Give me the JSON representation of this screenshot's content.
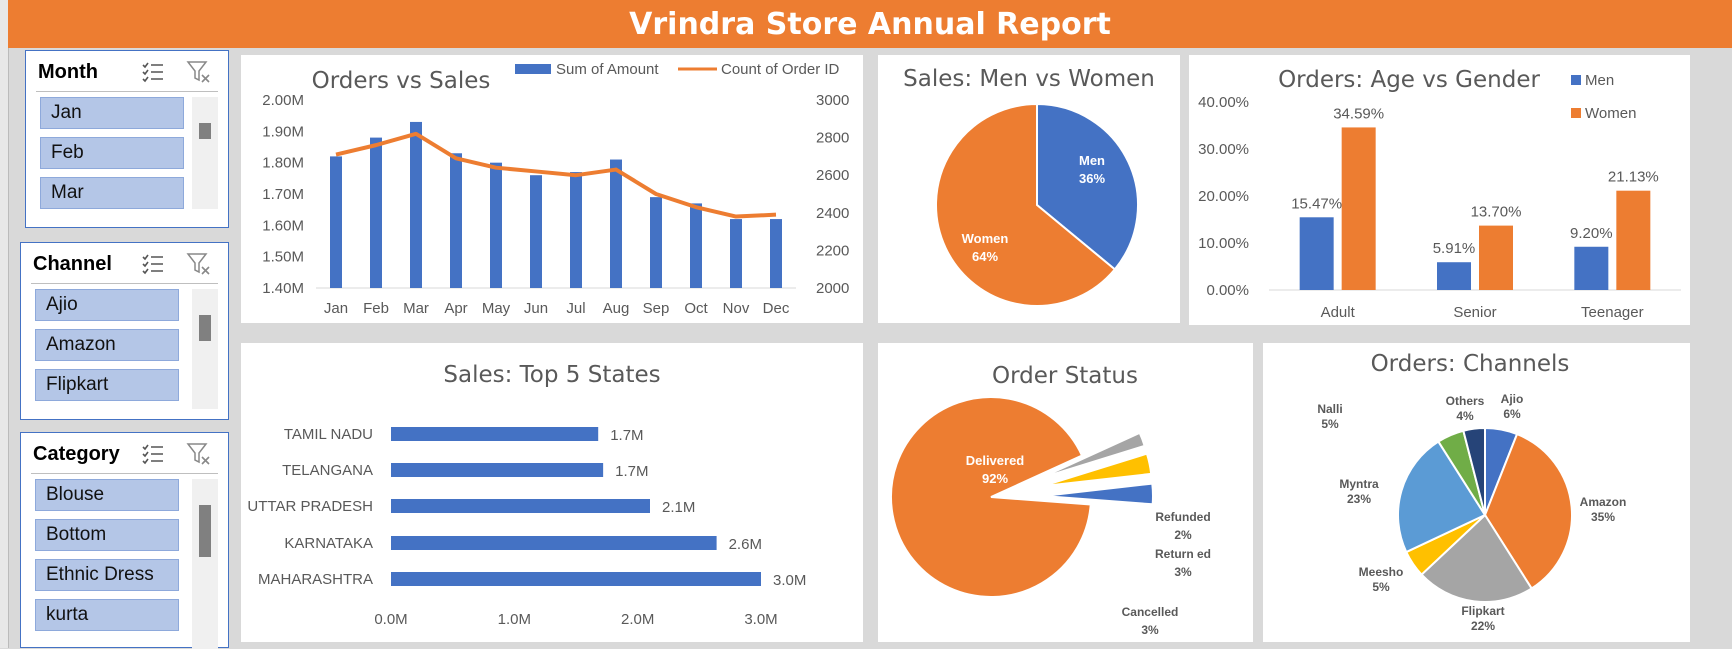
{
  "title": "Vrindra Store Annual Report",
  "slicers": [
    {
      "title": "Month",
      "items": [
        "Jan",
        "Feb",
        "Mar"
      ]
    },
    {
      "title": "Channel",
      "items": [
        "Ajio",
        "Amazon",
        "Flipkart"
      ]
    },
    {
      "title": "Category",
      "items": [
        "Blouse",
        "Bottom",
        "Ethnic Dress",
        "kurta"
      ]
    }
  ],
  "chart_data": [
    {
      "type": "bar",
      "title": "Orders vs Sales",
      "categories": [
        "Jan",
        "Feb",
        "Mar",
        "Apr",
        "May",
        "Jun",
        "Jul",
        "Aug",
        "Sep",
        "Oct",
        "Nov",
        "Dec"
      ],
      "series": [
        {
          "name": "Sum of Amount",
          "type": "bar",
          "axis": "left",
          "color": "#4472c4",
          "values": [
            1.82,
            1.88,
            1.93,
            1.83,
            1.8,
            1.76,
            1.77,
            1.81,
            1.69,
            1.67,
            1.62,
            1.62
          ]
        },
        {
          "name": "Count of Order ID",
          "type": "line",
          "axis": "right",
          "color": "#ed7d31",
          "values": [
            2710,
            2760,
            2820,
            2690,
            2640,
            2620,
            2600,
            2630,
            2500,
            2430,
            2380,
            2390
          ]
        }
      ],
      "yticks_left": [
        "2.00M",
        "1.90M",
        "1.80M",
        "1.70M",
        "1.60M",
        "1.50M",
        "1.40M"
      ],
      "ylim_left": [
        1.4,
        2.0
      ],
      "yticks_right": [
        "3000",
        "2800",
        "2600",
        "2400",
        "2200",
        "2000"
      ],
      "ylim_right": [
        2000,
        3000
      ],
      "legend": "top"
    },
    {
      "type": "pie",
      "title": "Sales: Men vs Women",
      "labels": [
        "Men",
        "Women"
      ],
      "values": [
        36,
        64
      ],
      "value_labels": [
        "36%",
        "64%"
      ],
      "colors": [
        "#4472c4",
        "#ed7d31"
      ]
    },
    {
      "type": "bar",
      "title": "Orders: Age vs Gender",
      "categories": [
        "Adult",
        "Senior",
        "Teenager"
      ],
      "series": [
        {
          "name": "Men",
          "color": "#4472c4",
          "values": [
            15.47,
            5.91,
            9.2
          ],
          "labels": [
            "15.47%",
            "5.91%",
            "9.20%"
          ]
        },
        {
          "name": "Women",
          "color": "#ed7d31",
          "values": [
            34.59,
            13.7,
            21.13
          ],
          "labels": [
            "34.59%",
            "13.70%",
            "21.13%"
          ]
        }
      ],
      "yticks": [
        "40.00%",
        "30.00%",
        "20.00%",
        "10.00%",
        "0.00%"
      ],
      "ylim": [
        0,
        40
      ],
      "legend": "top-right"
    },
    {
      "type": "bar",
      "orientation": "horizontal",
      "title": "Sales: Top 5 States",
      "categories": [
        "TAMIL NADU",
        "TELANGANA",
        "UTTAR PRADESH",
        "KARNATAKA",
        "MAHARASHTRA"
      ],
      "values": [
        1.7,
        1.7,
        2.1,
        2.6,
        3.0
      ],
      "plot_values": [
        1.68,
        1.72,
        2.1,
        2.64,
        3.0
      ],
      "value_labels": [
        "1.7M",
        "1.7M",
        "2.1M",
        "2.6M",
        "3.0M"
      ],
      "xticks": [
        "0.0M",
        "1.0M",
        "2.0M",
        "3.0M"
      ],
      "xlim": [
        0,
        3.0
      ],
      "color": "#4472c4"
    },
    {
      "type": "pie",
      "title": "Order Status",
      "labels": [
        "Delivered",
        "Refunded",
        "Return ed",
        "Cancelled"
      ],
      "values": [
        92,
        2,
        3,
        3
      ],
      "value_labels": [
        "92%",
        "2%",
        "3%",
        "3%"
      ],
      "colors": [
        "#ed7d31",
        "#a5a5a5",
        "#ffc000",
        "#4472c4"
      ]
    },
    {
      "type": "pie",
      "title": "Orders: Channels",
      "labels": [
        "Ajio",
        "Amazon",
        "Flipkart",
        "Meesho",
        "Myntra",
        "Nalli",
        "Others"
      ],
      "values": [
        6,
        35,
        22,
        5,
        23,
        5,
        4
      ],
      "value_labels": [
        "6%",
        "35%",
        "22%",
        "5%",
        "23%",
        "5%",
        "4%"
      ],
      "colors": [
        "#4472c4",
        "#ed7d31",
        "#a5a5a5",
        "#ffc000",
        "#5b9bd5",
        "#70ad47",
        "#264478"
      ]
    }
  ]
}
